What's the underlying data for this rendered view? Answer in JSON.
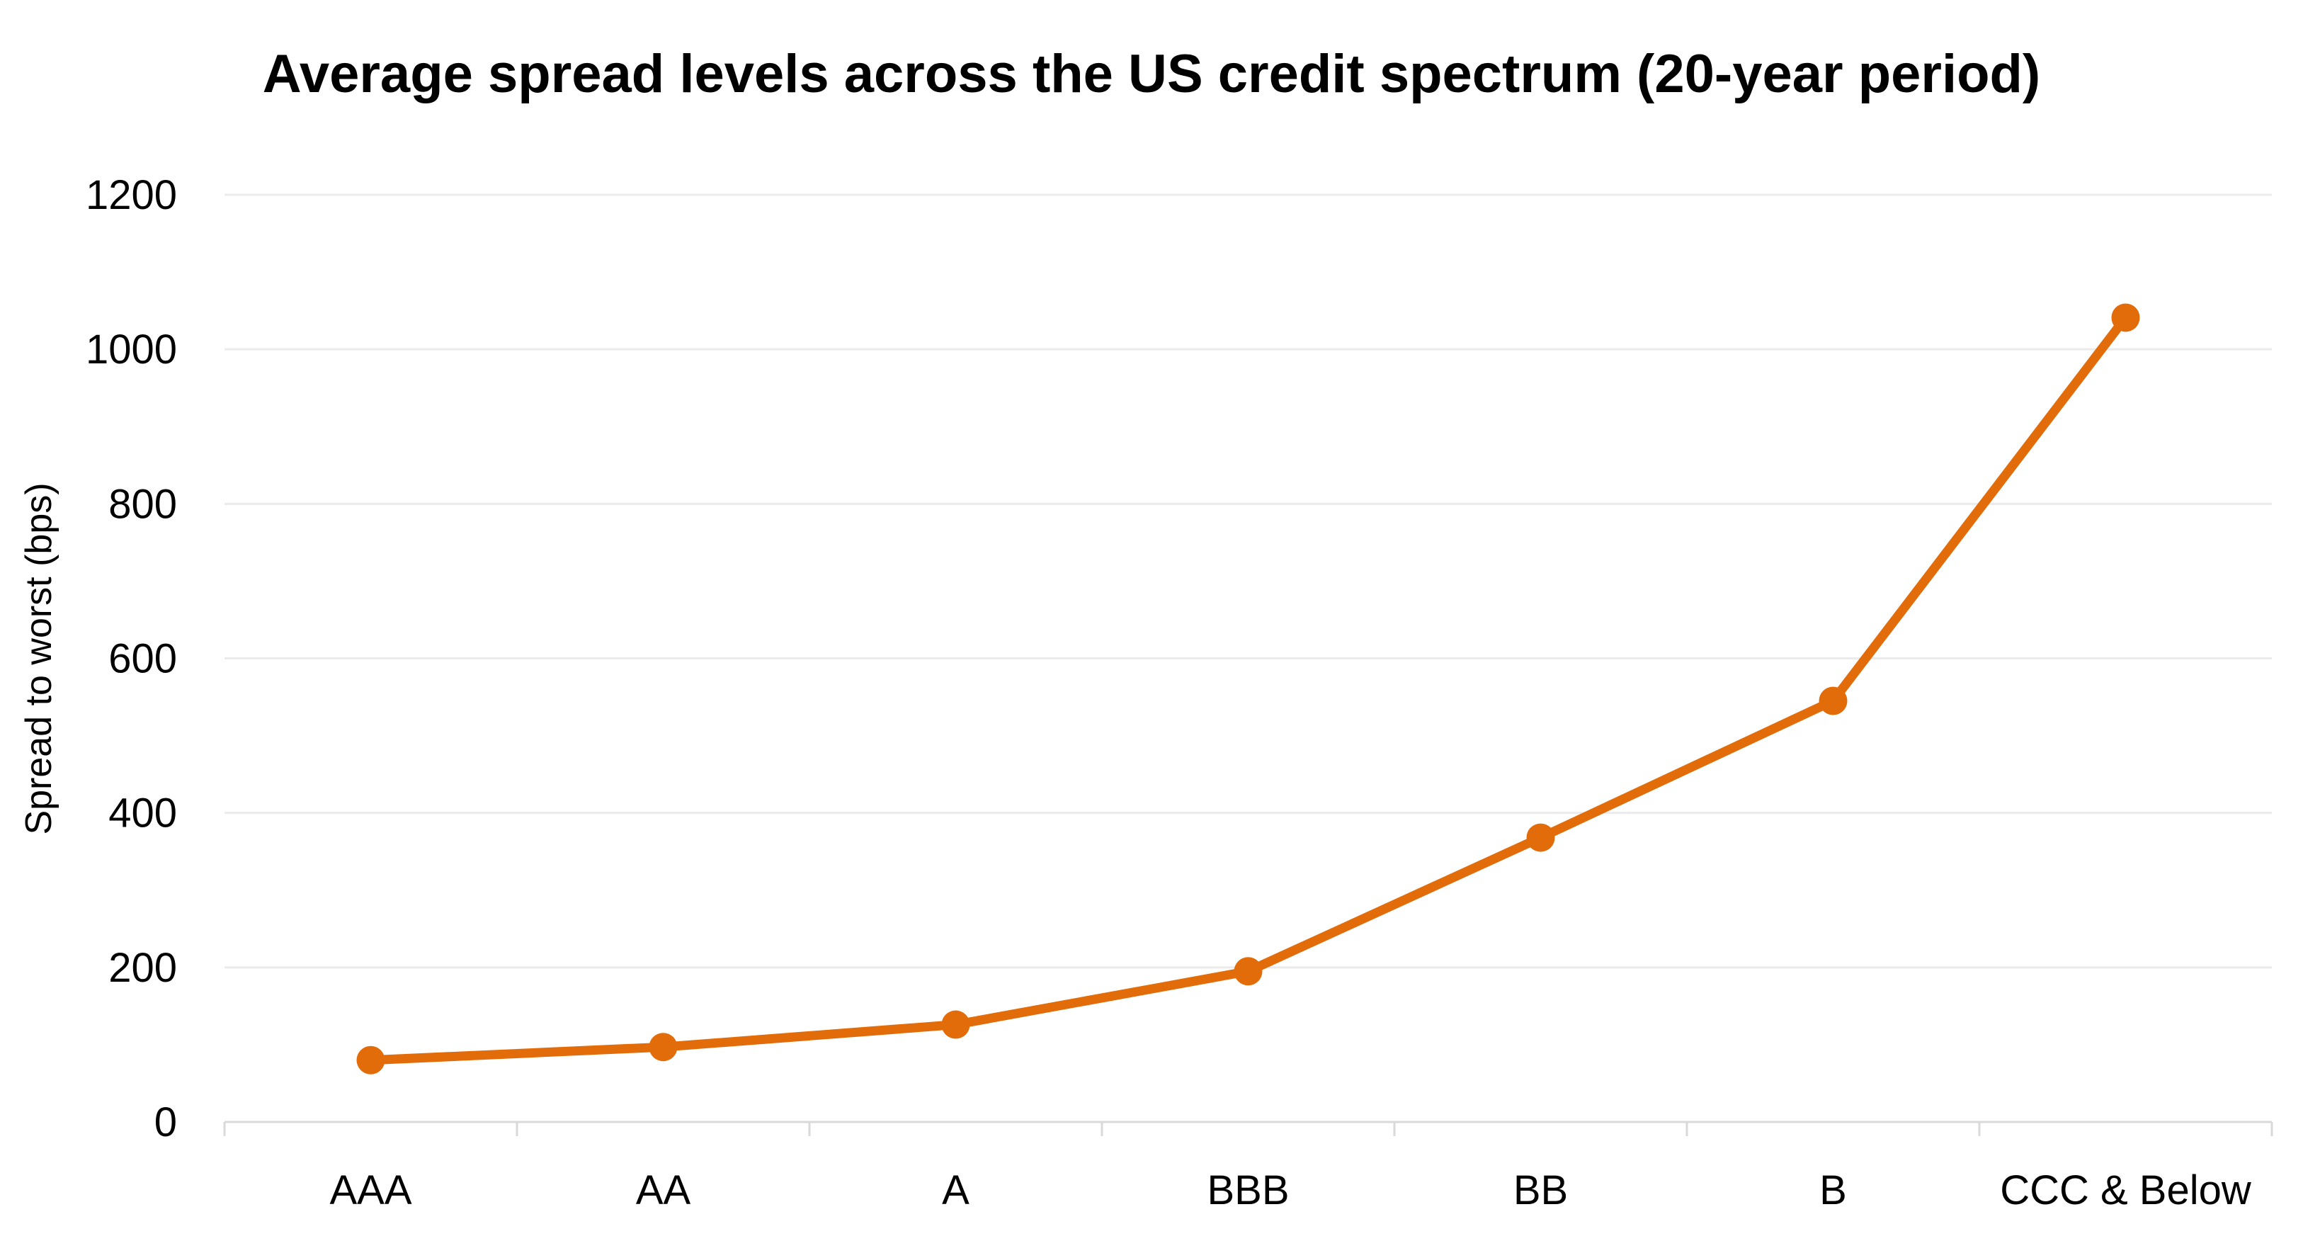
{
  "chart_data": {
    "type": "line",
    "title": "Average spread levels across the US credit spectrum (20-year period)",
    "xlabel": "",
    "ylabel": "Spread to worst (bps)",
    "categories": [
      "AAA",
      "AA",
      "A",
      "BBB",
      "BB",
      "B",
      "CCC & Below"
    ],
    "series": [
      {
        "values": [
          80,
          97,
          126,
          195,
          368,
          545,
          1041
        ]
      }
    ],
    "ylim": [
      0,
      1200
    ],
    "yticks": [
      0,
      200,
      400,
      600,
      800,
      1000,
      1200
    ],
    "grid": true,
    "legend": "none",
    "colors": {
      "line": "#E36C0A",
      "gridline": "#EBEBEB",
      "axis": "#D9D9D9"
    }
  }
}
